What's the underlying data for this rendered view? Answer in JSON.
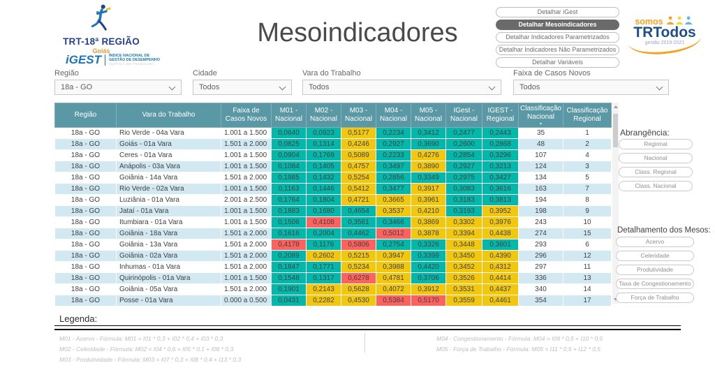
{
  "page": {
    "title": "Mesoindicadores"
  },
  "branding": {
    "trt_region": "TRT-18ª REGIÃO",
    "trt_state": "Goiás",
    "igest_name": "iGEST",
    "igest_line1": "ÍNDICE NACIONAL DE",
    "igest_line2": "GESTÃO DE DESEMPENHO",
    "igest_line3": "JUSTIÇA DO TRABALHO",
    "trtodos_somos": "somos",
    "trtodos_name": "TRTodos",
    "trtodos_gestao": "gestão 2019-2021"
  },
  "nav_buttons": [
    {
      "label": "Detalhar iGest",
      "active": false
    },
    {
      "label": "Detalhar Mesoindicadores",
      "active": true
    },
    {
      "label": "Detalhar Indicadores Parametrizados",
      "active": false
    },
    {
      "label": "Detalhar Indicadores Não Parametrizados",
      "active": false
    },
    {
      "label": "Detalhar Variáveis",
      "active": false
    }
  ],
  "filters": [
    {
      "label": "Região",
      "value": "18a - GO"
    },
    {
      "label": "Cidade",
      "value": "Todos"
    },
    {
      "label": "Vara do Trabalho",
      "value": "Todos"
    },
    {
      "label": "Faixa de Casos Novos",
      "value": "Todos"
    }
  ],
  "table": {
    "columns": [
      "Região",
      "Vara do Trabalho",
      "Faixa de Casos Novos",
      "M01 - Nacional",
      "M02 - Nacional",
      "M03 - Nacional",
      "M04 - Nacional",
      "M05 - Nacional",
      "IGest - Nacional",
      "IGEST - Regional",
      "Classificação Nacional",
      "Classificação Regional"
    ],
    "sorted_column": "Classificação Nacional",
    "sorted_column_index": 10,
    "sort_direction": "asc",
    "rows": [
      {
        "regiao": "18a - GO",
        "vara": "Rio Verde - 04a Vara",
        "faixa": "1.001 a 1.500",
        "values": [
          [
            "0,0640",
            "t"
          ],
          [
            "0,0923",
            "t"
          ],
          [
            "0,5177",
            "y"
          ],
          [
            "0,2234",
            "t"
          ],
          [
            "0,3412",
            "t"
          ],
          [
            "0,2477",
            "t"
          ],
          [
            "0,2443",
            "t"
          ]
        ],
        "class_nacional": "35",
        "class_regional": "1"
      },
      {
        "regiao": "18a - GO",
        "vara": "Goiás - 01a Vara",
        "faixa": "1.501 a 2.000",
        "values": [
          [
            "0,0825",
            "t"
          ],
          [
            "0,1314",
            "t"
          ],
          [
            "0,4246",
            "y"
          ],
          [
            "0,2927",
            "t"
          ],
          [
            "0,3690",
            "t"
          ],
          [
            "0,2600",
            "t"
          ],
          [
            "0,2868",
            "t"
          ]
        ],
        "class_nacional": "48",
        "class_regional": "2"
      },
      {
        "regiao": "18a - GO",
        "vara": "Ceres - 01a Vara",
        "faixa": "1.001 a 1.500",
        "values": [
          [
            "0,0904",
            "t"
          ],
          [
            "0,1769",
            "t"
          ],
          [
            "0,5089",
            "y"
          ],
          [
            "0,2233",
            "t"
          ],
          [
            "0,4276",
            "y"
          ],
          [
            "0,2854",
            "t"
          ],
          [
            "0,3296",
            "t"
          ]
        ],
        "class_nacional": "107",
        "class_regional": "4"
      },
      {
        "regiao": "18a - GO",
        "vara": "Anápolis - 03a Vara",
        "faixa": "1.001 a 1.500",
        "values": [
          [
            "0,1084",
            "t"
          ],
          [
            "0,1405",
            "t"
          ],
          [
            "0,4757",
            "y"
          ],
          [
            "0,3497",
            "t"
          ],
          [
            "0,3890",
            "y"
          ],
          [
            "0,2927",
            "t"
          ],
          [
            "0,3213",
            "t"
          ]
        ],
        "class_nacional": "124",
        "class_regional": "3"
      },
      {
        "regiao": "18a - GO",
        "vara": "Goiânia - 14a Vara",
        "faixa": "1.501 a 2.000",
        "values": [
          [
            "0,1985",
            "t"
          ],
          [
            "0,1432",
            "t"
          ],
          [
            "0,5254",
            "y"
          ],
          [
            "0,2856",
            "t"
          ],
          [
            "0,3349",
            "t"
          ],
          [
            "0,2975",
            "t"
          ],
          [
            "0,3427",
            "t"
          ]
        ],
        "class_nacional": "134",
        "class_regional": "5"
      },
      {
        "regiao": "18a - GO",
        "vara": "Rio Verde - 02a Vara",
        "faixa": "1.001 a 1.500",
        "values": [
          [
            "0,1163",
            "t"
          ],
          [
            "0,1446",
            "t"
          ],
          [
            "0,5412",
            "y"
          ],
          [
            "0,3477",
            "t"
          ],
          [
            "0,3917",
            "y"
          ],
          [
            "0,3083",
            "t"
          ],
          [
            "0,3616",
            "t"
          ]
        ],
        "class_nacional": "163",
        "class_regional": "7"
      },
      {
        "regiao": "18a - GO",
        "vara": "Luziânia - 01a Vara",
        "faixa": "2.001 a 2.500",
        "values": [
          [
            "0,1764",
            "t"
          ],
          [
            "0,1804",
            "t"
          ],
          [
            "0,4721",
            "y"
          ],
          [
            "0,3665",
            "y"
          ],
          [
            "0,3961",
            "y"
          ],
          [
            "0,3183",
            "t"
          ],
          [
            "0,3813",
            "t"
          ]
        ],
        "class_nacional": "194",
        "class_regional": "8"
      },
      {
        "regiao": "18a - GO",
        "vara": "Jataí - 01a Vara",
        "faixa": "1.001 a 1.500",
        "values": [
          [
            "0,1883",
            "t"
          ],
          [
            "0,1680",
            "t"
          ],
          [
            "0,4654",
            "t"
          ],
          [
            "0,3537",
            "y"
          ],
          [
            "0,4210",
            "y"
          ],
          [
            "0,3193",
            "t"
          ],
          [
            "0,3952",
            "y"
          ]
        ],
        "class_nacional": "198",
        "class_regional": "9"
      },
      {
        "regiao": "18a - GO",
        "vara": "Itumbiara - 01a Vara",
        "faixa": "1.001 a 1.500",
        "values": [
          [
            "0,1506",
            "t"
          ],
          [
            "0,4108",
            "r"
          ],
          [
            "0,3561",
            "t"
          ],
          [
            "0,3466",
            "t"
          ],
          [
            "0,3869",
            "y"
          ],
          [
            "0,3302",
            "y"
          ],
          [
            "0,3976",
            "y"
          ]
        ],
        "class_nacional": "243",
        "class_regional": "10"
      },
      {
        "regiao": "18a - GO",
        "vara": "Goiânia - 18a Vara",
        "faixa": "1.501 a 2.000",
        "values": [
          [
            "0,1616",
            "t"
          ],
          [
            "0,2004",
            "t"
          ],
          [
            "0,4462",
            "t"
          ],
          [
            "0,5012",
            "r"
          ],
          [
            "0,3878",
            "y"
          ],
          [
            "0,3394",
            "y"
          ],
          [
            "0,4438",
            "y"
          ]
        ],
        "class_nacional": "274",
        "class_regional": "15"
      },
      {
        "regiao": "18a - GO",
        "vara": "Goiânia - 13a Vara",
        "faixa": "1.501 a 2.000",
        "values": [
          [
            "0,4178",
            "r"
          ],
          [
            "0,1176",
            "t"
          ],
          [
            "0,5806",
            "r"
          ],
          [
            "0,2754",
            "t"
          ],
          [
            "0,3326",
            "t"
          ],
          [
            "0,3448",
            "y"
          ],
          [
            "0,3601",
            "t"
          ]
        ],
        "class_nacional": "293",
        "class_regional": "6"
      },
      {
        "regiao": "18a - GO",
        "vara": "Goiânia - 02a Vara",
        "faixa": "1.501 a 2.000",
        "values": [
          [
            "0,2089",
            "t"
          ],
          [
            "0,2602",
            "y"
          ],
          [
            "0,5215",
            "y"
          ],
          [
            "0,3947",
            "y"
          ],
          [
            "0,3399",
            "t"
          ],
          [
            "0,3450",
            "y"
          ],
          [
            "0,4390",
            "y"
          ]
        ],
        "class_nacional": "296",
        "class_regional": "12"
      },
      {
        "regiao": "18a - GO",
        "vara": "Inhumas - 01a Vara",
        "faixa": "1.501 a 2.000",
        "values": [
          [
            "0,1847",
            "t"
          ],
          [
            "0,1771",
            "t"
          ],
          [
            "0,5234",
            "y"
          ],
          [
            "0,3988",
            "y"
          ],
          [
            "0,4420",
            "t"
          ],
          [
            "0,3452",
            "y"
          ],
          [
            "0,4312",
            "y"
          ]
        ],
        "class_nacional": "297",
        "class_regional": "11"
      },
      {
        "regiao": "18a - GO",
        "vara": "Quirinópolis - 01a Vara",
        "faixa": "1.001 a 1.500",
        "values": [
          [
            "0,1548",
            "t"
          ],
          [
            "0,1317",
            "t"
          ],
          [
            "0,6278",
            "r"
          ],
          [
            "0,4781",
            "y"
          ],
          [
            "0,3706",
            "t"
          ],
          [
            "0,3526",
            "y"
          ],
          [
            "0,4414",
            "y"
          ]
        ],
        "class_nacional": "336",
        "class_regional": "13"
      },
      {
        "regiao": "18a - GO",
        "vara": "Goiânia - 05a Vara",
        "faixa": "1.501 a 2.000",
        "values": [
          [
            "0,1901",
            "t"
          ],
          [
            "0,2143",
            "y"
          ],
          [
            "0,5628",
            "y"
          ],
          [
            "0,4072",
            "y"
          ],
          [
            "0,3912",
            "y"
          ],
          [
            "0,3531",
            "y"
          ],
          [
            "0,4437",
            "y"
          ]
        ],
        "class_nacional": "340",
        "class_regional": "14"
      },
      {
        "regiao": "18a - GO",
        "vara": "Posse - 01a Vara",
        "faixa": "0.000 a 0.500",
        "values": [
          [
            "0,0431",
            "t"
          ],
          [
            "0,2282",
            "y"
          ],
          [
            "0,4530",
            "y"
          ],
          [
            "0,5384",
            "r"
          ],
          [
            "0,5170",
            "r"
          ],
          [
            "0,3559",
            "y"
          ],
          [
            "0,4461",
            "y"
          ]
        ],
        "class_nacional": "354",
        "class_regional": "17"
      }
    ]
  },
  "sidebar": {
    "abrangencia_label": "Abrangência:",
    "abrangencia_buttons": [
      "Regional",
      "Nacional",
      "Class. Regional",
      "Class. Nacional"
    ],
    "detalhamento_label": "Detalhamento dos Mesos:",
    "detalhamento_buttons": [
      "Acervo",
      "Celeridade",
      "Produtividade",
      "Taxa de Congestionamento",
      "Força de Trabalho"
    ]
  },
  "legend": {
    "title": "Legenda:",
    "left": [
      "M01 - Acervo - Fórmula: M01 = I01 * 0,3 + I02 * 0,4 + I03 * 0,3",
      "M02 - Celeridade - Fórmula: M02 = I04 * 0,6 + I05 * 0,1 + I06 * 0,3",
      "M03 - Produtividade - Fórmula: M03 = I07 * 0,3 + I08 * 0,4 + I13 * 0,3"
    ],
    "right": [
      "M04 - Congestionamento - Fórmula: M04 = I09 * 0,5 + I10 * 0,5",
      "M05 - Força de Trabalho - Fórmula: M05 = I11 * 0,5 + I12 * 0,5"
    ]
  },
  "colors": {
    "good_teal": "#01B8AA",
    "warn_yellow": "#F2C80F",
    "bad_red": "#FD625E",
    "table_header_teal": "#5B98A5",
    "alt_row_blue": "#D2E9F2",
    "active_button_gray": "#6A6A6A",
    "brand_blue": "#1F4E8C",
    "brand_orange": "#F6A21E"
  },
  "icons": {
    "dropdown": "chevron-down-icon",
    "sort": "sort-ascending-icon",
    "scroll_up": "scroll-up-arrow-icon",
    "scroll_down": "scroll-down-arrow-icon"
  }
}
